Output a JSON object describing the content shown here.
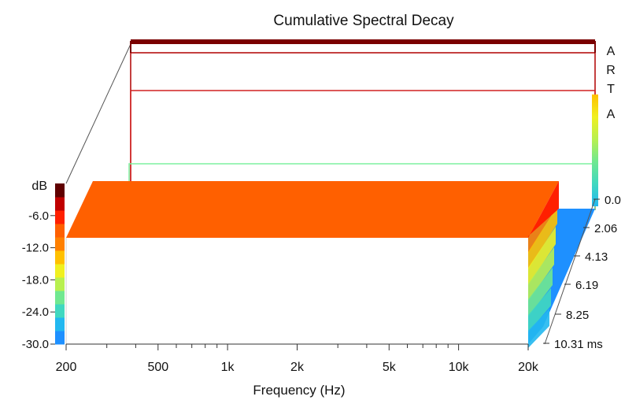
{
  "chart_data": {
    "type": "area",
    "title": "Cumulative Spectral Decay",
    "xlabel": "Frequency (Hz)",
    "x_scale": "log",
    "xlim": [
      200,
      20000
    ],
    "x_ticks": [
      200,
      500,
      1000,
      2000,
      5000,
      10000,
      20000
    ],
    "x_tick_labels": [
      "200",
      "500",
      "1k",
      "2k",
      "5k",
      "10k",
      "20k"
    ],
    "x_minor_ticks": [
      300,
      400,
      600,
      700,
      800,
      900,
      3000,
      4000,
      6000,
      7000,
      8000,
      9000
    ],
    "color_scale_title": "dB",
    "color_scale_labels": [
      "-6.0",
      "-12.0",
      "-18.0",
      "-24.0",
      "-30.0"
    ],
    "color_scale_range": [
      -30,
      0
    ],
    "time_axis_labels": [
      "0.0",
      "2.06",
      "4.13",
      "6.19",
      "8.25",
      "10.31 ms"
    ],
    "time_values_ms": [
      0.0,
      2.06,
      4.13,
      6.19,
      8.25,
      10.31
    ],
    "watermark": [
      "A",
      "R",
      "T",
      "A"
    ],
    "front_slice_level_db": -10,
    "slice_outline_colors": [
      "#7a0000",
      "#b00000",
      "#d02020",
      "#e04020",
      "#7ef0a0"
    ],
    "colormap": [
      "#1e90ff",
      "#22b8f0",
      "#40d8c0",
      "#70e890",
      "#b8f050",
      "#f0f020",
      "#ffc000",
      "#ff8000",
      "#ff6000",
      "#ff2000",
      "#c00000",
      "#600000"
    ]
  }
}
